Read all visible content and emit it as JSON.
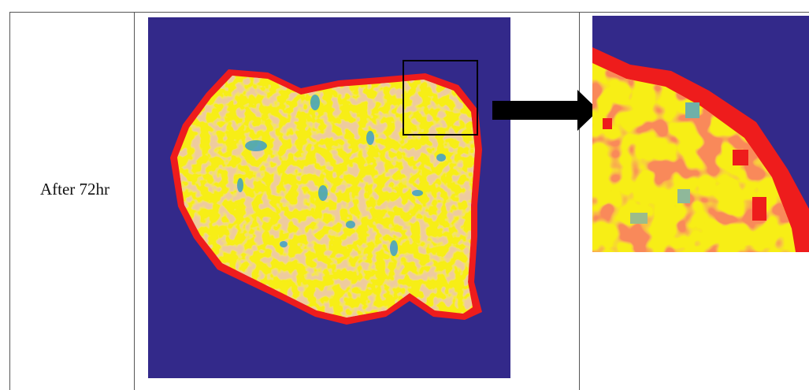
{
  "table": {
    "rows": [
      [
        "After 72hr"
      ]
    ]
  }
}
